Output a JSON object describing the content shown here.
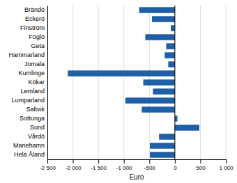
{
  "chart_data": {
    "type": "bar",
    "orientation": "horizontal",
    "categories": [
      "Brändö",
      "Eckerö",
      "Finström",
      "Föglö",
      "Geta",
      "Hammarland",
      "Jomala",
      "Kumlinge",
      "Kökar",
      "Lemland",
      "Lumparland",
      "Saltvik",
      "Sottunga",
      "Sund",
      "Vårdö",
      "Mariehamn",
      "Hela Åland"
    ],
    "values": [
      -700,
      -450,
      -80,
      -580,
      -170,
      -200,
      -130,
      -2100,
      -620,
      -430,
      -970,
      -650,
      50,
      480,
      -310,
      -490,
      -490
    ],
    "color": "#1f5fa6",
    "xlabel": "Euro",
    "xlim": [
      -2500,
      1000
    ],
    "xticks": [
      {
        "value": -2500,
        "label": "-2 500"
      },
      {
        "value": -2000,
        "label": "-2 000"
      },
      {
        "value": -1500,
        "label": "-1 500"
      },
      {
        "value": -1000,
        "label": "-1 000"
      },
      -500,
      0,
      500,
      {
        "value": 1000,
        "label": "1 000"
      }
    ],
    "grid": true
  }
}
